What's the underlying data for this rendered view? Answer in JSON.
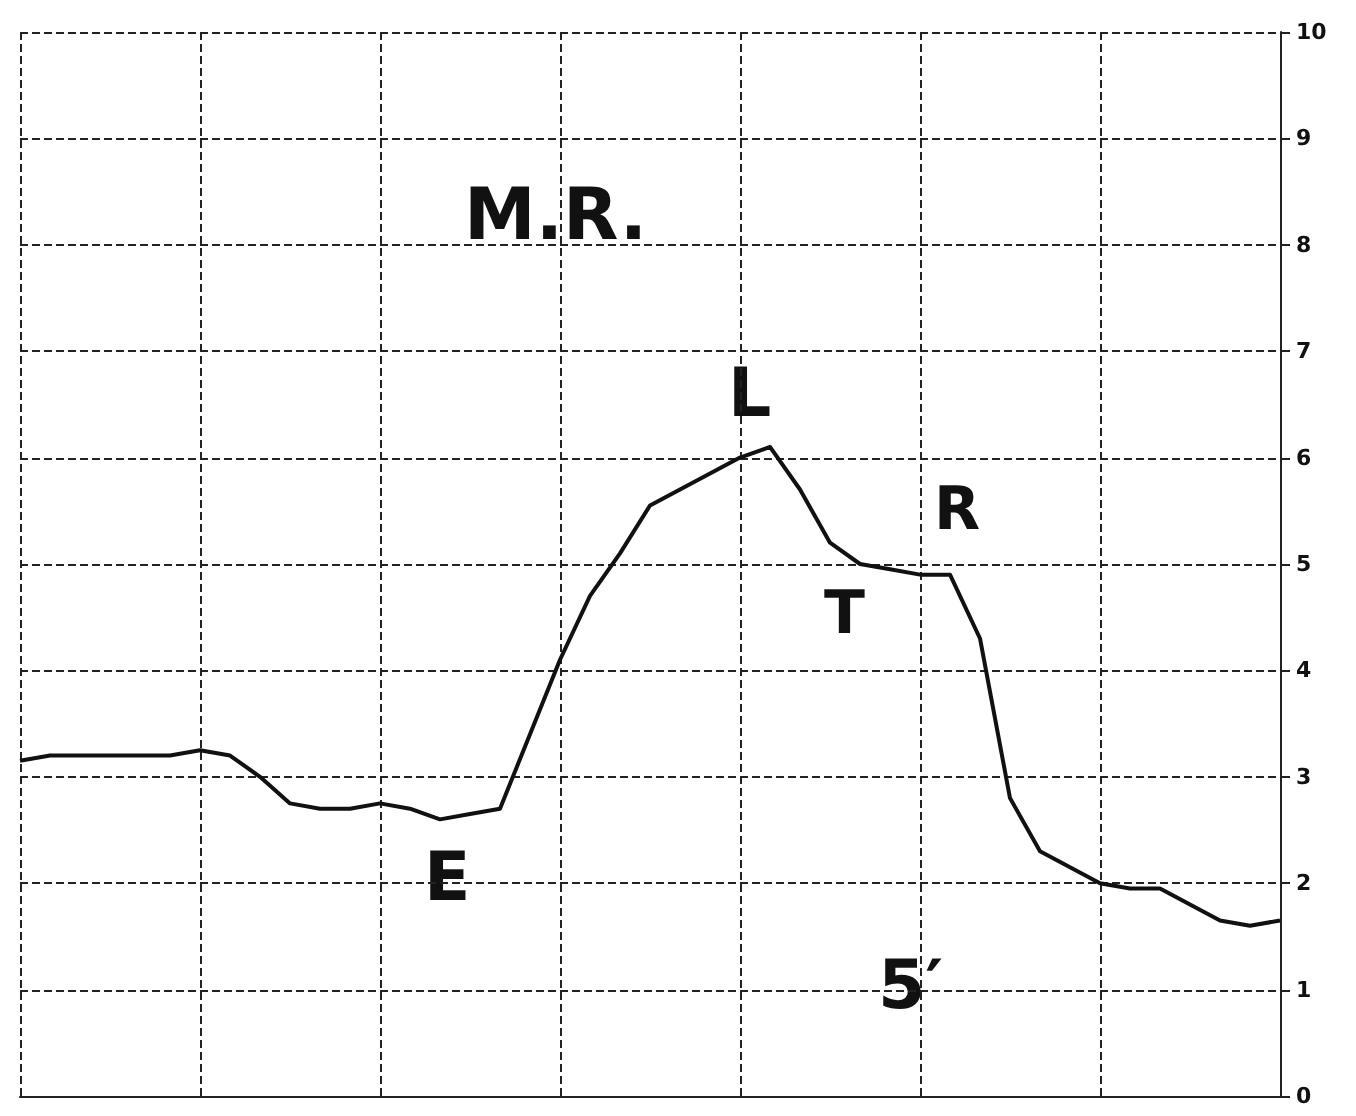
{
  "chart_data": {
    "type": "line",
    "annotations": [
      "M.R.",
      "E",
      "L",
      "T",
      "R",
      "5′"
    ],
    "categories": [
      null,
      null,
      null,
      null,
      null,
      null,
      null,
      null,
      null,
      null,
      null,
      null,
      null,
      null,
      null,
      null,
      null,
      null,
      null,
      null,
      null,
      null,
      null,
      null,
      null,
      null,
      null,
      null,
      null,
      null,
      null,
      null,
      null,
      null,
      null,
      null,
      null,
      null,
      null,
      null,
      null,
      null,
      null
    ],
    "series": [
      {
        "color": "#111111",
        "values": [
          3.15,
          3.2,
          3.2,
          3.2,
          3.2,
          3.2,
          3.25,
          3.2,
          3.0,
          2.75,
          2.7,
          2.7,
          2.75,
          2.7,
          2.6,
          2.65,
          2.7,
          3.4,
          4.1,
          4.7,
          5.1,
          5.55,
          5.7,
          5.85,
          6.0,
          6.1,
          5.7,
          5.2,
          5.0,
          4.95,
          4.9,
          4.9,
          4.3,
          2.8,
          2.3,
          2.15,
          2.0,
          1.95,
          1.95,
          1.8,
          1.65,
          1.6,
          1.65
        ]
      }
    ],
    "ylim": [
      0,
      10
    ],
    "yticks": [
      0,
      1,
      2,
      3,
      4,
      5,
      6,
      7,
      8,
      9,
      10
    ],
    "grid": true,
    "marker": "none",
    "line_style": "solid"
  }
}
